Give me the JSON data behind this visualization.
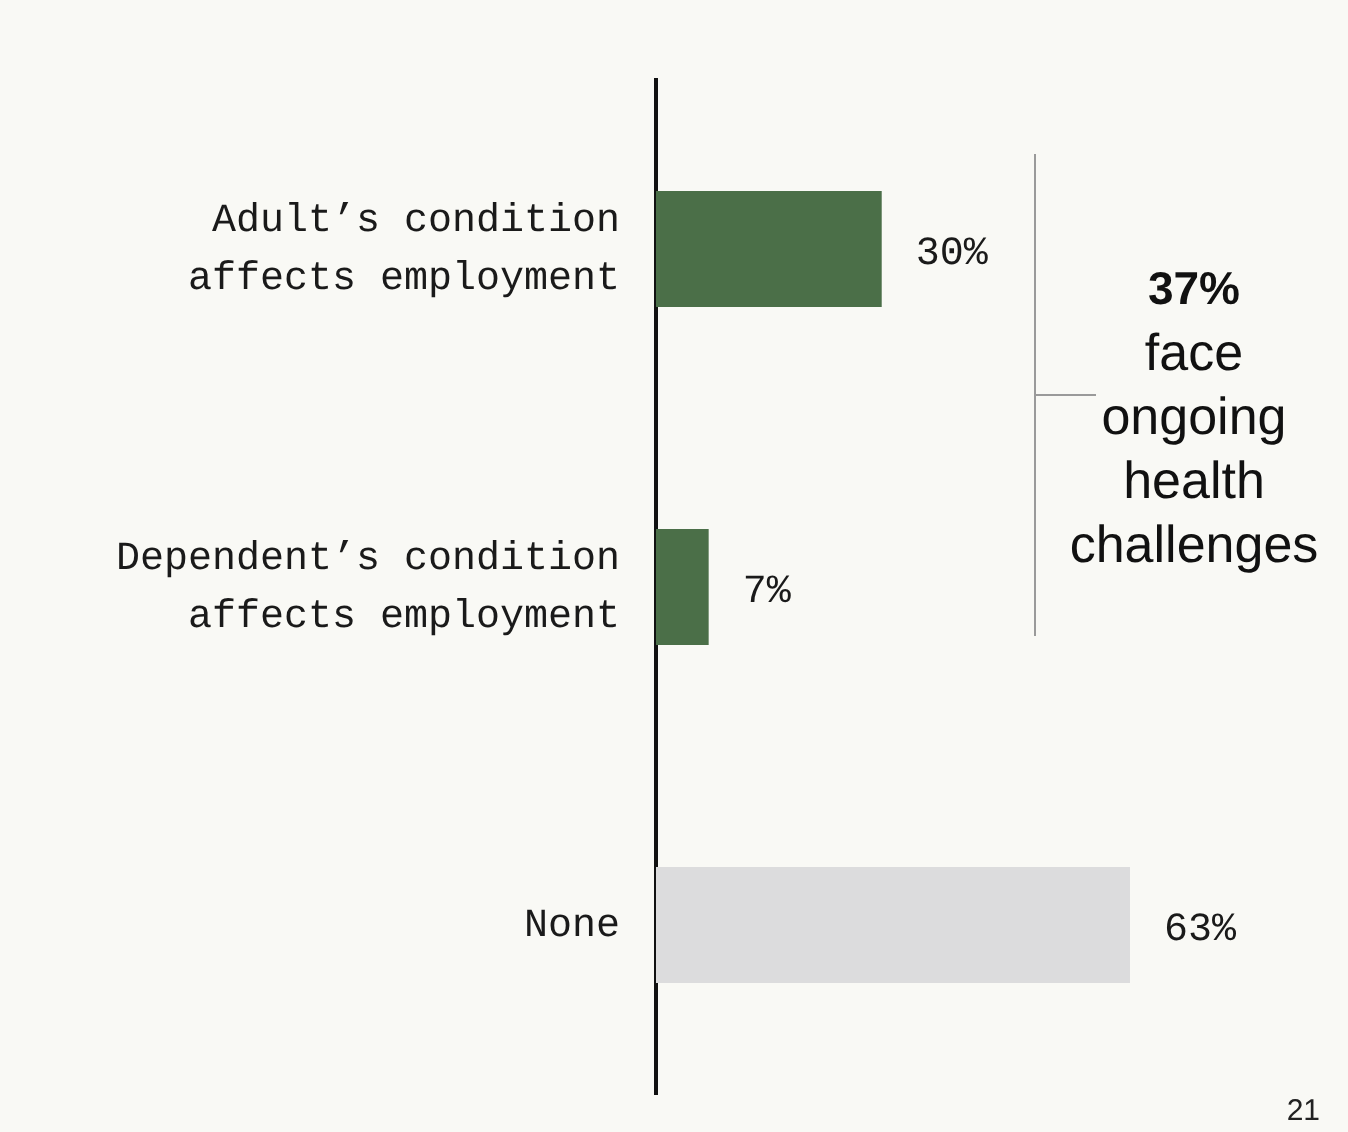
{
  "chart_data": {
    "type": "bar",
    "orientation": "horizontal",
    "categories": [
      "Adult’s condition affects employment",
      "Dependent’s condition affects employment",
      "None"
    ],
    "values": [
      30,
      7,
      63
    ],
    "colors": [
      "#4b6f48",
      "#4b6f48",
      "#dcdcdd"
    ],
    "value_labels": [
      "30%",
      "7%",
      "63%"
    ],
    "tick_labels": "y",
    "annotations": [
      "37% face ongoing health challenges",
      "21"
    ]
  }
}
